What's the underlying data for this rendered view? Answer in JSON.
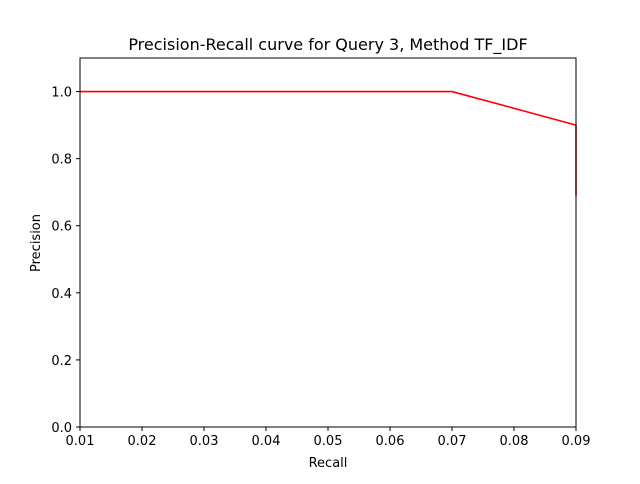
{
  "chart_data": {
    "type": "line",
    "title": "Precision-Recall curve for Query 3, Method TF_IDF",
    "xlabel": "Recall",
    "ylabel": "Precision",
    "xlim": [
      0.01,
      0.09
    ],
    "ylim": [
      0.0,
      1.1
    ],
    "x_ticks": [
      0.01,
      0.02,
      0.03,
      0.04,
      0.05,
      0.06,
      0.07,
      0.08,
      0.09
    ],
    "x_tick_labels": [
      "0.01",
      "0.02",
      "0.03",
      "0.04",
      "0.05",
      "0.06",
      "0.07",
      "0.08",
      "0.09"
    ],
    "y_ticks": [
      0.0,
      0.2,
      0.4,
      0.6,
      0.8,
      1.0
    ],
    "y_tick_labels": [
      "0.0",
      "0.2",
      "0.4",
      "0.6",
      "0.8",
      "1.0"
    ],
    "grid": false,
    "series": [
      {
        "color": "#ff0000",
        "x": [
          0.01,
          0.07,
          0.09,
          0.09
        ],
        "y": [
          1.0,
          1.0,
          0.9,
          0.69
        ]
      }
    ]
  }
}
